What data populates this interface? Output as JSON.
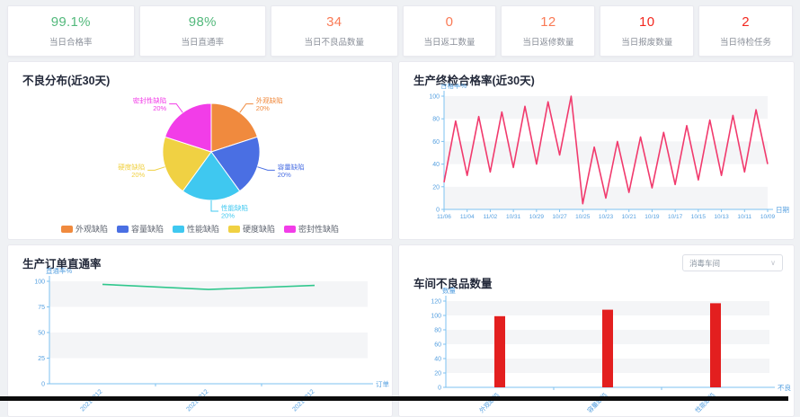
{
  "kpis": [
    {
      "value": "99.1%",
      "label": "当日合格率",
      "color": "#53b97c"
    },
    {
      "value": "98%",
      "label": "当日直通率",
      "color": "#53b97c"
    },
    {
      "value": "34",
      "label": "当日不良品数量",
      "color": "#fa7a55"
    },
    {
      "value": "0",
      "label": "当日返工数量",
      "color": "#fa7a55"
    },
    {
      "value": "12",
      "label": "当日返修数量",
      "color": "#fa7a55"
    },
    {
      "value": "10",
      "label": "当日报废数量",
      "color": "#f3281f"
    },
    {
      "value": "2",
      "label": "当日待检任务",
      "color": "#f3281f"
    }
  ],
  "panels": {
    "defect_pie": {
      "title": "不良分布(近30天)"
    },
    "final_rate": {
      "title": "生产终检合格率(近30天)"
    },
    "order_rate": {
      "title": "生产订单直通率"
    },
    "workshop": {
      "title": "车间不良品数量",
      "selector_value": "消毒车间",
      "selector_chevron": "∨"
    }
  },
  "colors": {
    "axis_line": "#7ec2f0",
    "axis_text": "#56a0e0",
    "split_band": "#f4f5f7",
    "panel_border": "#e9e9ef"
  },
  "chart_data": [
    {
      "id": "defect_pie",
      "type": "pie",
      "title": "不良分布(近30天)",
      "legend_position": "bottom",
      "series": [
        {
          "name": "外观缺陷",
          "value": 20,
          "pct": "20%",
          "color": "#f08a3e"
        },
        {
          "name": "容量缺陷",
          "value": 20,
          "pct": "20%",
          "color": "#4a6fe3"
        },
        {
          "name": "性能缺陷",
          "value": 20,
          "pct": "20%",
          "color": "#3fc8f0"
        },
        {
          "name": "硬度缺陷",
          "value": 20,
          "pct": "20%",
          "color": "#f0d143"
        },
        {
          "name": "密封性缺陷",
          "value": 20,
          "pct": "20%",
          "color": "#f23de8"
        }
      ]
    },
    {
      "id": "final_rate",
      "type": "line",
      "title": "生产终检合格率(近30天)",
      "ylabel": "合格率%",
      "xlabel": "日期",
      "ylim": [
        0,
        100
      ],
      "yticks": [
        0,
        20,
        40,
        60,
        80,
        100
      ],
      "grid": "split-area",
      "label_every": 2,
      "color": "#f13a6d",
      "x": [
        "11/06",
        "11/05",
        "11/04",
        "11/03",
        "11/02",
        "11/01",
        "10/31",
        "10/30",
        "10/29",
        "10/28",
        "10/27",
        "10/26",
        "10/25",
        "10/24",
        "10/23",
        "10/22",
        "10/21",
        "10/20",
        "10/19",
        "10/18",
        "10/17",
        "10/16",
        "10/15",
        "10/14",
        "10/13",
        "10/12",
        "10/11",
        "10/10",
        "10/09"
      ],
      "values": [
        24,
        78,
        30,
        82,
        33,
        86,
        37,
        91,
        40,
        95,
        48,
        100,
        5,
        55,
        10,
        60,
        15,
        64,
        19,
        68,
        22,
        74,
        26,
        79,
        30,
        83,
        33,
        88,
        40
      ]
    },
    {
      "id": "order_rate",
      "type": "line",
      "title": "生产订单直通率",
      "ylabel": "直通率%",
      "xlabel": "订单",
      "ylim": [
        0,
        100
      ],
      "yticks": [
        0,
        25,
        50,
        75,
        100
      ],
      "grid": "split-area",
      "rotated_labels": true,
      "color": "#30c78d",
      "x": [
        "20210212",
        "20210212",
        "20210212"
      ],
      "values": [
        97,
        92,
        96
      ]
    },
    {
      "id": "workshop",
      "type": "bar",
      "title": "车间不良品数量",
      "ylabel": "数量",
      "xlabel": "不良",
      "ylim": [
        0,
        120
      ],
      "yticks": [
        0,
        20,
        40,
        60,
        80,
        100,
        120
      ],
      "grid": "split-area",
      "rotated_labels": true,
      "color": "#e31f1f",
      "x": [
        "外观缺陷",
        "容量缺陷",
        "性能缺陷"
      ],
      "values": [
        99,
        108,
        117
      ]
    }
  ]
}
